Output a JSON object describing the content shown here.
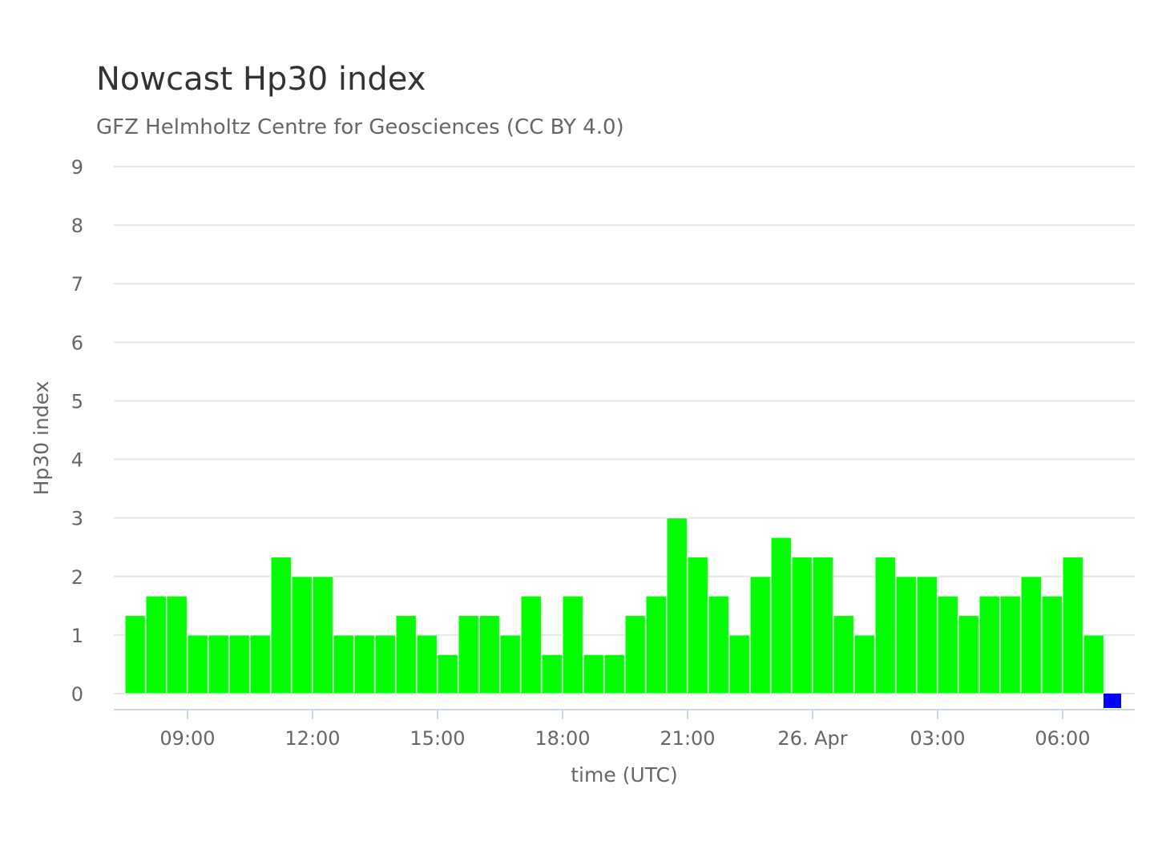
{
  "chart_data": {
    "type": "bar",
    "title": "Nowcast Hp30 index",
    "subtitle": "GFZ Helmholtz Centre for Geosciences (CC BY 4.0)",
    "xlabel": "time (UTC)",
    "ylabel": "Hp30 index",
    "ylim": [
      0,
      9
    ],
    "yticks": [
      0,
      1,
      2,
      3,
      4,
      5,
      6,
      7,
      8,
      9
    ],
    "grid": true,
    "xticks": [
      {
        "label": "09:00",
        "hours": 9
      },
      {
        "label": "12:00",
        "hours": 12
      },
      {
        "label": "15:00",
        "hours": 15
      },
      {
        "label": "18:00",
        "hours": 18
      },
      {
        "label": "21:00",
        "hours": 21
      },
      {
        "label": "26. Apr",
        "hours": 24
      },
      {
        "label": "03:00",
        "hours": 27
      },
      {
        "label": "06:00",
        "hours": 30
      }
    ],
    "series": [
      {
        "color": "#00ff00",
        "start_hours": 7.5,
        "interval_hours": 0.5,
        "values": [
          1.333,
          1.667,
          1.667,
          1,
          1,
          1,
          1,
          2.333,
          2,
          2,
          1,
          1,
          1,
          1.333,
          1,
          0.667,
          1.333,
          1.333,
          1,
          1.667,
          0.667,
          1.667,
          0.667,
          0.667,
          1.333,
          1.667,
          3,
          2.333,
          1.667,
          1,
          2,
          2.667,
          2.333,
          2.333,
          1.333,
          1,
          2.333,
          2,
          2,
          1.667,
          1.333,
          1.667,
          1.667,
          2,
          1.667,
          2.333,
          1
        ]
      },
      {
        "color": "#0000ff",
        "start_hours": 31,
        "interval_hours": 0.5,
        "values": [
          0
        ]
      }
    ]
  }
}
